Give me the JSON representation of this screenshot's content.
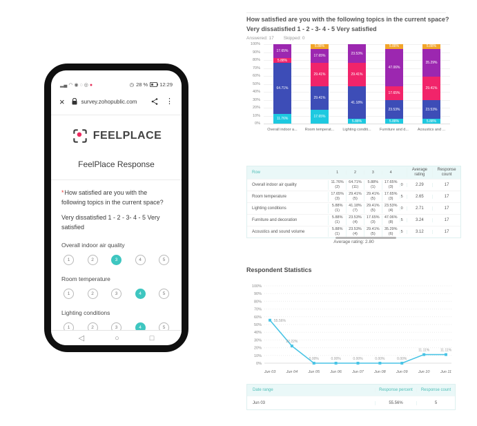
{
  "phone": {
    "status_bar": {
      "left_icons": [
        "signal-icon",
        "wifi-icon",
        "eye-icon",
        "contact-icon",
        "whatsapp-icon",
        "recording-icon"
      ],
      "battery": "28 %",
      "time": "12:29"
    },
    "browser_bar": {
      "url": "survey.zohopublic.com"
    },
    "logo_text": "FEELPLACE",
    "page_title": "FeelPlace Response",
    "question": {
      "asterisk": "*",
      "text": "How satisfied are you with the following topics in the current space?",
      "scale_hint": "Very dissatisfied  1 - 2 - 3- 4 - 5 Very satisfied"
    },
    "scale": [
      "1",
      "2",
      "3",
      "4",
      "5"
    ],
    "topics": [
      {
        "label": "Overall indoor air quality",
        "selected": 3,
        "clipped": false
      },
      {
        "label": "Room temperature",
        "selected": 4,
        "clipped": false
      },
      {
        "label": "Lighting conditions",
        "selected": 4,
        "clipped": false
      },
      {
        "label": "Furniture and decoration",
        "selected": null,
        "clipped": true
      }
    ],
    "nav_icons": [
      "back-icon",
      "home-icon",
      "recents-icon"
    ]
  },
  "report": {
    "question_title": "How satisfied are you with the following topics in the current space?",
    "question_scale": "Very dissatisfied  1 - 2 - 3- 4 - 5 Very satisfied",
    "answered": "Answered: 17",
    "skipped": "Skipped: 0",
    "table": {
      "headers": [
        "Row",
        "1",
        "2",
        "3",
        "4",
        "Average rating",
        "Response count"
      ],
      "rows": [
        {
          "label": "Overall indoor air quality",
          "cells": [
            "11.76% (2)",
            "64.71% (11)",
            "5.88% (1)",
            "17.65% (3)"
          ],
          "col5_visible": "0",
          "avg": "2.29",
          "count": "17"
        },
        {
          "label": "Room temperature",
          "cells": [
            "17.65% (3)",
            "29.41% (5)",
            "29.41% (5)",
            "17.65% (3)"
          ],
          "col5_visible": "5",
          "avg": "2.65",
          "count": "17"
        },
        {
          "label": "Lighting conditions",
          "cells": [
            "5.88% (1)",
            "41.18% (7)",
            "29.41% (5)",
            "23.53% (4)"
          ],
          "col5_visible": "0",
          "avg": "2.71",
          "count": "17"
        },
        {
          "label": "Furniture and decoration",
          "cells": [
            "5.88% (1)",
            "23.53% (4)",
            "17.65% (3)",
            "47.06% (8)"
          ],
          "col5_visible": "5",
          "avg": "3.24",
          "count": "17"
        },
        {
          "label": "Acoustics and sound volume",
          "cells": [
            "5.88% (1)",
            "23.53% (4)",
            "29.41% (5)",
            "35.29% (6)"
          ],
          "col5_visible": "5",
          "avg": "3.12",
          "count": "17"
        }
      ],
      "footer": "Average rating: 2.80"
    },
    "respondent_title": "Respondent Statistics",
    "date_table": {
      "headers": [
        "Date range",
        "Response percent",
        "Response count"
      ],
      "rows": [
        [
          "Jun 03",
          "55.56%",
          "5"
        ]
      ]
    }
  },
  "colors": {
    "teal_accent": "#3ec6c0",
    "table_header_text": "#4cbdb6",
    "logo_dot": "#ed2a5f",
    "line_chart": "#49c4e5"
  },
  "chart_data": [
    {
      "type": "bar",
      "stacked": true,
      "title": "How satisfied are you with the following topics in the current space?",
      "categories": [
        "Overall indoor a...",
        "Room temperat...",
        "Lighting conditi...",
        "Furniture and d...",
        "Acoustics and ..."
      ],
      "series": [
        {
          "name": "1",
          "color": "#1ec9e0",
          "values": [
            11.76,
            17.65,
            5.88,
            5.88,
            5.88
          ]
        },
        {
          "name": "2",
          "color": "#3d4db7",
          "values": [
            64.71,
            29.41,
            41.18,
            23.53,
            23.53
          ]
        },
        {
          "name": "3",
          "color": "#f1246a",
          "values": [
            5.88,
            29.41,
            29.41,
            17.65,
            29.41
          ]
        },
        {
          "name": "4",
          "color": "#9c27b0",
          "values": [
            17.65,
            17.65,
            23.53,
            47.06,
            35.29
          ]
        },
        {
          "name": "5",
          "color": "#f2a52a",
          "values": [
            0,
            5.88,
            0,
            5.88,
            5.88
          ]
        }
      ],
      "ylim": [
        0,
        100
      ],
      "ytick_step": 10,
      "grid": true,
      "legend": false
    },
    {
      "type": "line",
      "title": "Respondent Statistics",
      "x": [
        "Jun 03",
        "Jun 04",
        "Jun 05",
        "Jun 06",
        "Jun 07",
        "Jun 08",
        "Jun 09",
        "Jun 10",
        "Jun 11"
      ],
      "values": [
        55.56,
        22.22,
        0,
        0,
        0,
        0,
        0,
        11.11,
        11.11
      ],
      "point_labels": [
        "55.56%",
        "22.22%",
        "0.00%",
        "0.00%",
        "0.00%",
        "0.00%",
        "0.00%",
        "11.11%",
        "11.11%"
      ],
      "color": "#49c4e5",
      "ylim": [
        0,
        100
      ],
      "ytick_step": 10,
      "grid": true,
      "legend": false
    }
  ]
}
